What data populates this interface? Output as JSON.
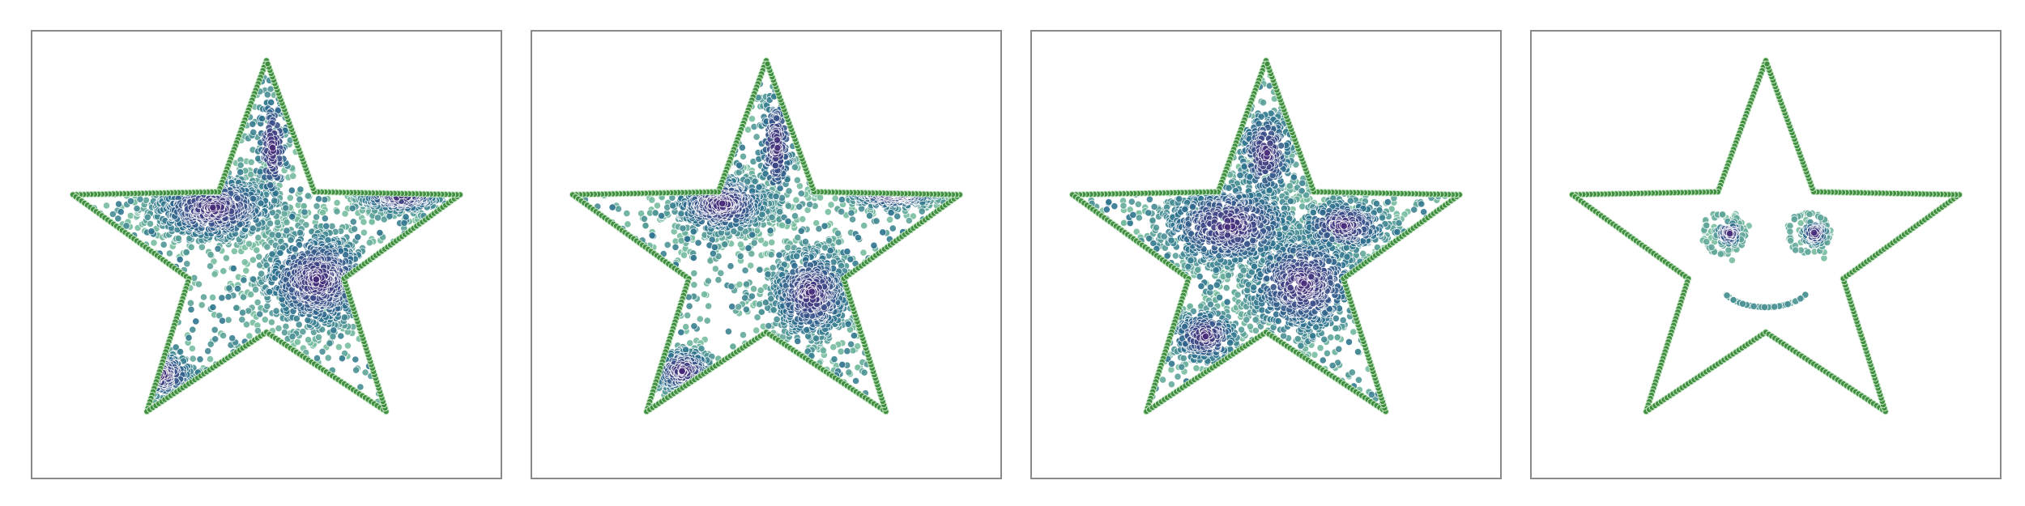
{
  "chart_data": [
    {
      "type": "scatter",
      "title": "",
      "xlabel": "",
      "ylabel": "",
      "xlim": [
        -1.15,
        1.15
      ],
      "ylim": [
        -1.15,
        1.15
      ],
      "grid": false,
      "legend": "none",
      "series": [
        {
          "kind": "star-outline",
          "marker_fill": "#3f8f3f",
          "marker_edge": "#c8e6c8",
          "count": 400
        },
        {
          "kind": "cluster",
          "x": -0.26,
          "y": 0.24,
          "sx": 0.18,
          "sy": 0.1,
          "n": 650
        },
        {
          "kind": "cluster",
          "x": 0.25,
          "y": -0.13,
          "sx": 0.16,
          "sy": 0.15,
          "n": 750
        },
        {
          "kind": "cluster",
          "x": 0.66,
          "y": 0.3,
          "sx": 0.12,
          "sy": 0.05,
          "n": 220
        },
        {
          "kind": "cluster",
          "x": -0.52,
          "y": -0.62,
          "sx": 0.1,
          "sy": 0.07,
          "n": 180
        },
        {
          "kind": "cluster",
          "x": 0.03,
          "y": 0.55,
          "sx": 0.05,
          "sy": 0.18,
          "n": 160
        },
        {
          "kind": "diffuse",
          "n": 380
        }
      ]
    },
    {
      "type": "scatter",
      "title": "",
      "xlabel": "",
      "ylabel": "",
      "xlim": [
        -1.15,
        1.15
      ],
      "ylim": [
        -1.15,
        1.15
      ],
      "grid": false,
      "legend": "none",
      "series": [
        {
          "kind": "star-outline",
          "marker_fill": "#3f8f3f",
          "marker_edge": "#c8e6c8",
          "count": 400
        },
        {
          "kind": "cluster",
          "x": -0.22,
          "y": 0.26,
          "sx": 0.14,
          "sy": 0.09,
          "n": 600
        },
        {
          "kind": "cluster",
          "x": 0.22,
          "y": -0.2,
          "sx": 0.12,
          "sy": 0.14,
          "n": 560
        },
        {
          "kind": "cluster",
          "x": 0.62,
          "y": 0.32,
          "sx": 0.13,
          "sy": 0.05,
          "n": 260
        },
        {
          "kind": "cluster",
          "x": -0.41,
          "y": -0.6,
          "sx": 0.09,
          "sy": 0.07,
          "n": 220
        },
        {
          "kind": "cluster",
          "x": 0.05,
          "y": 0.56,
          "sx": 0.05,
          "sy": 0.18,
          "n": 200
        },
        {
          "kind": "diffuse",
          "n": 420
        }
      ]
    },
    {
      "type": "scatter",
      "title": "",
      "xlabel": "",
      "ylabel": "",
      "xlim": [
        -1.15,
        1.15
      ],
      "ylim": [
        -1.15,
        1.15
      ],
      "grid": false,
      "legend": "none",
      "series": [
        {
          "kind": "star-outline",
          "marker_fill": "#3f8f3f",
          "marker_edge": "#c8e6c8",
          "count": 400
        },
        {
          "kind": "cluster",
          "x": -0.18,
          "y": 0.15,
          "sx": 0.2,
          "sy": 0.13,
          "n": 750
        },
        {
          "kind": "cluster",
          "x": 0.18,
          "y": -0.15,
          "sx": 0.17,
          "sy": 0.16,
          "n": 750
        },
        {
          "kind": "cluster",
          "x": 0.38,
          "y": 0.15,
          "sx": 0.13,
          "sy": 0.08,
          "n": 320
        },
        {
          "kind": "cluster",
          "x": 0.0,
          "y": 0.52,
          "sx": 0.08,
          "sy": 0.14,
          "n": 260
        },
        {
          "kind": "cluster",
          "x": -0.3,
          "y": -0.42,
          "sx": 0.1,
          "sy": 0.08,
          "n": 260
        },
        {
          "kind": "diffuse",
          "n": 420
        }
      ]
    },
    {
      "type": "scatter",
      "title": "",
      "xlabel": "",
      "ylabel": "",
      "xlim": [
        -1.15,
        1.15
      ],
      "ylim": [
        -1.15,
        1.15
      ],
      "grid": false,
      "legend": "none",
      "series": [
        {
          "kind": "star-outline",
          "marker_fill": "#3f8f3f",
          "marker_edge": "#c8e6c8",
          "count": 400
        },
        {
          "kind": "ring",
          "x": -0.21,
          "y": 0.11,
          "r": 0.1,
          "n": 55
        },
        {
          "kind": "ring",
          "x": 0.21,
          "y": 0.11,
          "r": 0.1,
          "n": 55
        },
        {
          "kind": "cluster",
          "x": -0.18,
          "y": 0.11,
          "sx": 0.035,
          "sy": 0.035,
          "n": 90
        },
        {
          "kind": "cluster",
          "x": 0.24,
          "y": 0.11,
          "sx": 0.035,
          "sy": 0.035,
          "n": 90
        },
        {
          "kind": "smile",
          "x": 0.0,
          "y": -0.2,
          "r": 0.22,
          "n": 70
        }
      ]
    }
  ]
}
